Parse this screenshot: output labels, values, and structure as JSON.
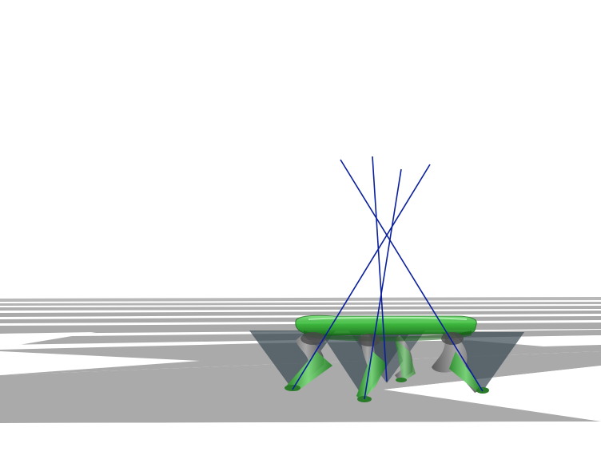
{
  "viewer": {
    "background_color": "#ffffff",
    "ground": {
      "pattern": "checkerboard",
      "light_color": "#ffffff",
      "dark_color": "#aaaaaa"
    },
    "robot": {
      "type": "quadruped",
      "body_color": "#2fb52f",
      "leg_color": "#6e6e6e",
      "friction_cone_color": "#3c4b55",
      "force_line_color": "#0a1f9c",
      "leg_count": 4
    }
  }
}
